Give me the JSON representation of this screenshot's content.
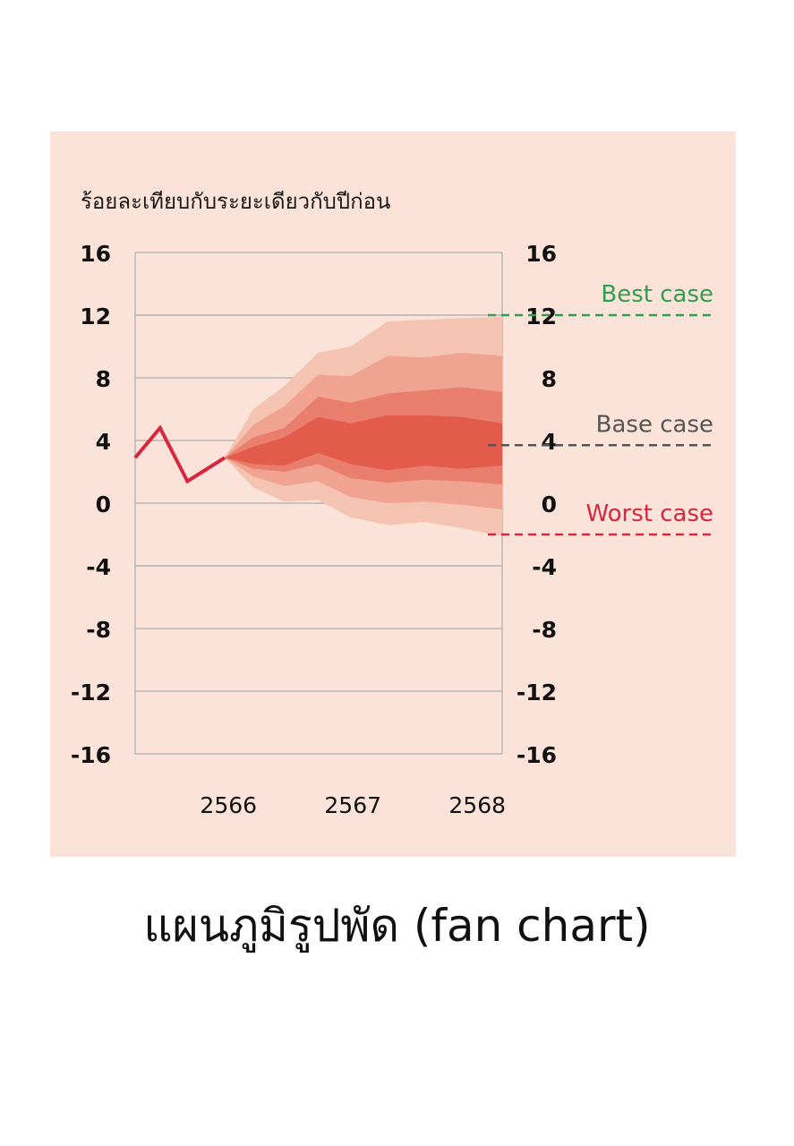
{
  "caption": "แผนภูมิรูปพัด (fan chart)",
  "chart_data": {
    "type": "area",
    "ylabel": "ร้อยละเทียบกับระยะเดียวกับปีก่อน",
    "ylim": [
      -16,
      16
    ],
    "yticks": [
      16,
      12,
      8,
      4,
      0,
      -4,
      -8,
      -12,
      -16
    ],
    "yticks_right": [
      16,
      12,
      8,
      4,
      0,
      -4,
      -8,
      -12,
      -16
    ],
    "x_tick_labels": [
      {
        "x": 2566,
        "label": "2566"
      },
      {
        "x": 2567,
        "label": "2567"
      },
      {
        "x": 2568,
        "label": "2568"
      }
    ],
    "xlim": [
      2565.25,
      2568.2
    ],
    "grid": true,
    "actual_series": {
      "color": "#d7263d",
      "x": [
        2565.25,
        2565.45,
        2565.67,
        2565.97
      ],
      "y": [
        2.9,
        4.8,
        1.4,
        2.9
      ]
    },
    "fan": {
      "x": [
        2565.97,
        2566.2,
        2566.45,
        2566.72,
        2566.98,
        2567.28,
        2567.58,
        2567.87,
        2568.2
      ],
      "bands": [
        {
          "color": "#f5c3b1",
          "upper": [
            2.9,
            6.0,
            7.5,
            9.6,
            10.0,
            11.6,
            11.7,
            11.8,
            11.9
          ],
          "lower": [
            2.9,
            1.0,
            0.1,
            0.2,
            -0.9,
            -1.4,
            -1.2,
            -1.6,
            -2.1
          ]
        },
        {
          "color": "#f0a390",
          "upper": [
            2.9,
            5.0,
            6.2,
            8.2,
            8.1,
            9.4,
            9.3,
            9.6,
            9.4
          ],
          "lower": [
            2.9,
            1.7,
            1.1,
            1.4,
            0.4,
            0.0,
            0.1,
            -0.1,
            -0.4
          ]
        },
        {
          "color": "#e97e6c",
          "upper": [
            2.9,
            4.2,
            4.8,
            6.8,
            6.4,
            7.0,
            7.2,
            7.4,
            7.1
          ],
          "lower": [
            2.9,
            2.2,
            2.0,
            2.5,
            1.6,
            1.3,
            1.5,
            1.4,
            1.2
          ]
        },
        {
          "color": "#e25b4b",
          "upper": [
            2.9,
            3.6,
            4.2,
            5.5,
            5.1,
            5.6,
            5.6,
            5.5,
            5.1
          ],
          "lower": [
            2.9,
            2.5,
            2.4,
            3.2,
            2.5,
            2.1,
            2.4,
            2.2,
            2.4
          ]
        }
      ]
    },
    "scenarios": [
      {
        "label": "Best case",
        "value": 12,
        "color": "#2f9e4f"
      },
      {
        "label": "Base case",
        "value": 3.7,
        "color": "#555555"
      },
      {
        "label": "Worst case",
        "value": -2,
        "color": "#d7263d"
      }
    ]
  }
}
